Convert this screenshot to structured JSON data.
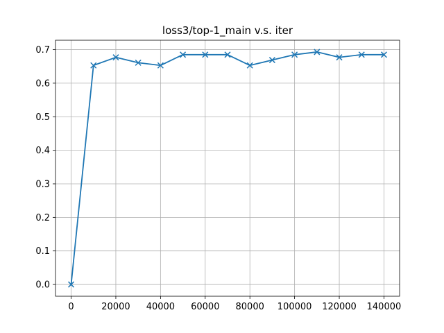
{
  "chart_data": {
    "type": "line",
    "title": "loss3/top-1_main v.s. iter",
    "xlabel": "",
    "ylabel": "",
    "xlim": [
      -7000,
      147000
    ],
    "ylim": [
      -0.035,
      0.728
    ],
    "grid": true,
    "xticks": [
      0,
      20000,
      40000,
      60000,
      80000,
      100000,
      120000,
      140000
    ],
    "yticks": [
      0.0,
      0.1,
      0.2,
      0.3,
      0.4,
      0.5,
      0.6,
      0.7
    ],
    "xtick_labels": [
      "0",
      "20000",
      "40000",
      "60000",
      "80000",
      "100000",
      "120000",
      "140000"
    ],
    "ytick_labels": [
      "0.0",
      "0.1",
      "0.2",
      "0.3",
      "0.4",
      "0.5",
      "0.6",
      "0.7"
    ],
    "series": [
      {
        "color": "#1f77b4",
        "marker": "x",
        "x": [
          0,
          10000,
          20000,
          30000,
          40000,
          50000,
          60000,
          70000,
          80000,
          90000,
          100000,
          110000,
          120000,
          130000,
          140000
        ],
        "y": [
          0.0,
          0.653,
          0.677,
          0.661,
          0.653,
          0.685,
          0.685,
          0.685,
          0.653,
          0.669,
          0.685,
          0.693,
          0.677,
          0.685,
          0.685
        ]
      }
    ]
  }
}
